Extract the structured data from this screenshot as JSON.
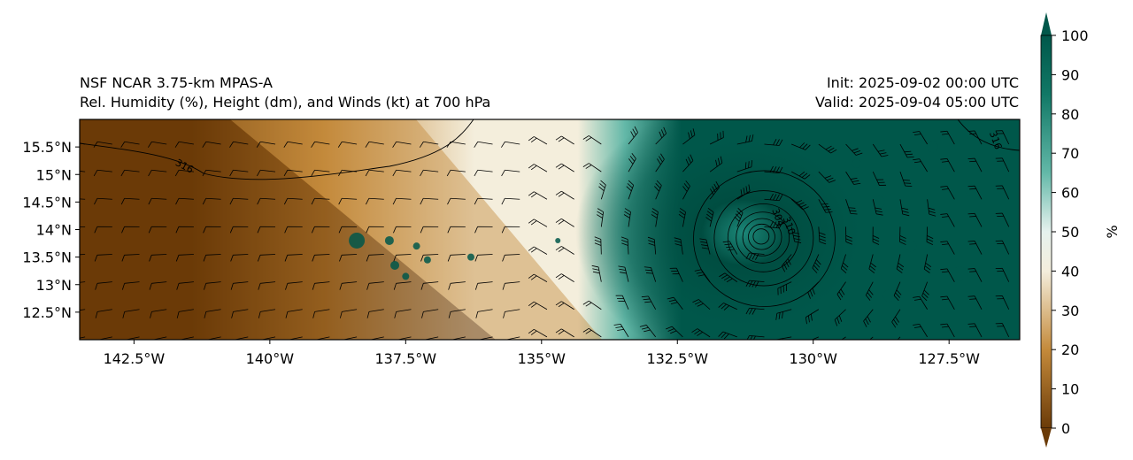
{
  "header": {
    "model_name": "NSF NCAR 3.75-km MPAS-A",
    "field_description": "Rel. Humidity (%), Height (dm), and Winds (kt) at 700 hPa",
    "init_label": "Init: 2025-09-02 00:00 UTC",
    "valid_label": "Valid: 2025-09-04 05:00 UTC"
  },
  "map": {
    "lon_range": [
      -143.5,
      -126.2
    ],
    "lat_range": [
      12.0,
      16.0
    ],
    "lon_ticks": [
      {
        "value": -142.5,
        "label": "142.5°W"
      },
      {
        "value": -140.0,
        "label": "140°W"
      },
      {
        "value": -137.5,
        "label": "137.5°W"
      },
      {
        "value": -135.0,
        "label": "135°W"
      },
      {
        "value": -132.5,
        "label": "132.5°W"
      },
      {
        "value": -130.0,
        "label": "130°W"
      },
      {
        "value": -127.5,
        "label": "127.5°W"
      }
    ],
    "lat_ticks": [
      {
        "value": 15.5,
        "label": "15.5°N"
      },
      {
        "value": 15.0,
        "label": "15°N"
      },
      {
        "value": 14.5,
        "label": "14.5°N"
      },
      {
        "value": 14.0,
        "label": "14°N"
      },
      {
        "value": 13.5,
        "label": "13.5°N"
      },
      {
        "value": 13.0,
        "label": "13°N"
      },
      {
        "value": 12.5,
        "label": "12.5°N"
      }
    ],
    "cyclone_center": {
      "lon": -130.9,
      "lat": 13.9
    },
    "contours": [
      {
        "level_label": "316",
        "label_lon": -141.6,
        "label_lat": 15.1
      },
      {
        "level_label": "316",
        "label_lon": -126.7,
        "label_lat": 15.6
      },
      {
        "level_label": "310",
        "label_lon": -130.5,
        "label_lat": 14.05
      },
      {
        "level_label": "304",
        "label_lon": -130.7,
        "label_lat": 14.2
      }
    ],
    "colors": {
      "dry": "#6b3b08",
      "mid_dry": "#c48a3b",
      "neutral": "#f4eedc",
      "mid_wet": "#63b8a8",
      "wet": "#00574a"
    }
  },
  "colorbar": {
    "unit_label": "%",
    "range": [
      0,
      100
    ],
    "ticks": [
      {
        "value": 0,
        "label": "0"
      },
      {
        "value": 10,
        "label": "10"
      },
      {
        "value": 20,
        "label": "20"
      },
      {
        "value": 30,
        "label": "30"
      },
      {
        "value": 40,
        "label": "40"
      },
      {
        "value": 50,
        "label": "50"
      },
      {
        "value": 60,
        "label": "60"
      },
      {
        "value": 70,
        "label": "70"
      },
      {
        "value": 80,
        "label": "80"
      },
      {
        "value": 90,
        "label": "90"
      },
      {
        "value": 100,
        "label": "100"
      }
    ]
  }
}
